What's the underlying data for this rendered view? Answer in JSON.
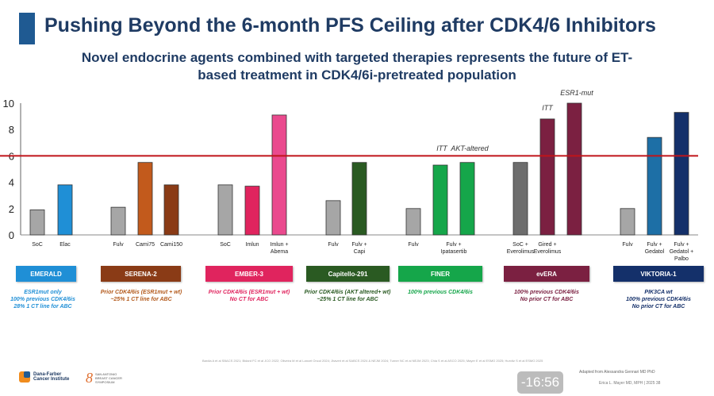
{
  "slide": {
    "title": "Pushing Beyond the 6-month PFS Ceiling after CDK4/6 Inhibitors",
    "subtitle": "Novel endocrine agents combined with targeted therapies represents the future of ET-\nbased treatment in CDK4/6i-pretreated population",
    "references": "Bardia A et al SBACS 2021; Bidard FC et al JCO 2022; Oliveira M et al Lancet Oncol 2024; Jhaveri et al SABCS 2024 & NEJM 2024; Turner NC et al NEJM 2023; Chia S et al ASCO 2025; Mayer E et al ESMO 2025; Hurvitz S et al ESMO 2025",
    "adapted": "Adapted from Alessandra Gennari MD PhD",
    "author": "Erica L. Mayer MD, MPH  |  2025      38",
    "timer": "-16:56",
    "logo1_text": "Dana-Farber\nCancer Institute",
    "logo2_text": "SAN ANTONIO\nBREAST CANCER\nSYMPOSIUM"
  },
  "chart_data": {
    "type": "bar",
    "ylim": [
      0,
      10
    ],
    "yticks": [
      0,
      2,
      4,
      6,
      8,
      10
    ],
    "reference_line": 6,
    "reference_line_color": "#c0141a",
    "bars": [
      {
        "label": "SoC",
        "value": 1.9,
        "color": "#a6a6a6"
      },
      {
        "label": "Elac",
        "value": 3.8,
        "color": "#1f8fd6"
      },
      {
        "label": "Fulv",
        "value": 2.1,
        "color": "#a6a6a6"
      },
      {
        "label": "Cami75",
        "value": 5.5,
        "color": "#c25a1c"
      },
      {
        "label": "Cami150",
        "value": 3.8,
        "color": "#8a3b16"
      },
      {
        "label": "SoC",
        "value": 3.8,
        "color": "#a6a6a6"
      },
      {
        "label": "Imlun",
        "value": 3.7,
        "color": "#e0245e"
      },
      {
        "label": "Imlun +\nAbema",
        "value": 9.1,
        "color": "#ea4a8e"
      },
      {
        "label": "Fulv",
        "value": 2.6,
        "color": "#a6a6a6"
      },
      {
        "label": "Fulv +\nCapi",
        "value": 5.5,
        "color": "#2a5a22"
      },
      {
        "label": "Fulv",
        "value": 2.0,
        "color": "#a6a6a6"
      },
      {
        "label": "Fulv +\nIpatasertib",
        "value": 5.3,
        "color": "#15a64a"
      },
      {
        "label": "",
        "value": 5.5,
        "color": "#15a64a"
      },
      {
        "label": "SoC +\nEverolimus",
        "value": 5.5,
        "color": "#6d6d6d"
      },
      {
        "label": "Gired +\nEverolimus",
        "value": 8.8,
        "color": "#7b2041"
      },
      {
        "label": "",
        "value": 10.0,
        "color": "#7b2041"
      },
      {
        "label": "Fulv",
        "value": 2.0,
        "color": "#a6a6a6"
      },
      {
        "label": "Fulv +\nGedatol",
        "value": 7.4,
        "color": "#1d6fa6"
      },
      {
        "label": "Fulv +\nGedatol +\nPalbo",
        "value": 9.3,
        "color": "#14306a"
      }
    ],
    "annotations": {
      "finer_itt": "ITT",
      "finer_akt": "AKT-altered",
      "evera_itt": "ITT",
      "evera_esr1": "ESR1-mut"
    },
    "trials": [
      {
        "name": "EMERALD",
        "color": "#1f8fd6",
        "note": "ESR1mut only\n100% previous CDK4/6is\n28% 1 CT line for ABC",
        "note_color": "#1f8fd6"
      },
      {
        "name": "SERENA-2",
        "color": "#8a3b16",
        "note": "Prior CDK4/6is (ESR1mut + wt)\n~25% 1 CT line for ABC",
        "note_color": "#b35a1c"
      },
      {
        "name": "EMBER-3",
        "color": "#e0245e",
        "note": "Prior CDK4/6is (ESR1mut + wt)\nNo CT for ABC",
        "note_color": "#e0245e"
      },
      {
        "name": "Capitello-291",
        "color": "#2a5a22",
        "note": "Prior CDK4/6is (AKT altered+ wt)\n~25% 1 CT line for ABC",
        "note_color": "#2a5a22"
      },
      {
        "name": "FINER",
        "color": "#15a64a",
        "note": "100% previous CDK4/6is",
        "note_color": "#15a64a"
      },
      {
        "name": "evERA",
        "color": "#7b2041",
        "note": "100% previous CDK4/6is\nNo prior CT for ABC",
        "note_color": "#7b2041"
      },
      {
        "name": "VIKTORIA-1",
        "color": "#14306a",
        "note": "PIK3CA wt\n100% previous CDK4/6is\nNo prior CT for ABC",
        "note_color": "#14306a"
      }
    ]
  }
}
